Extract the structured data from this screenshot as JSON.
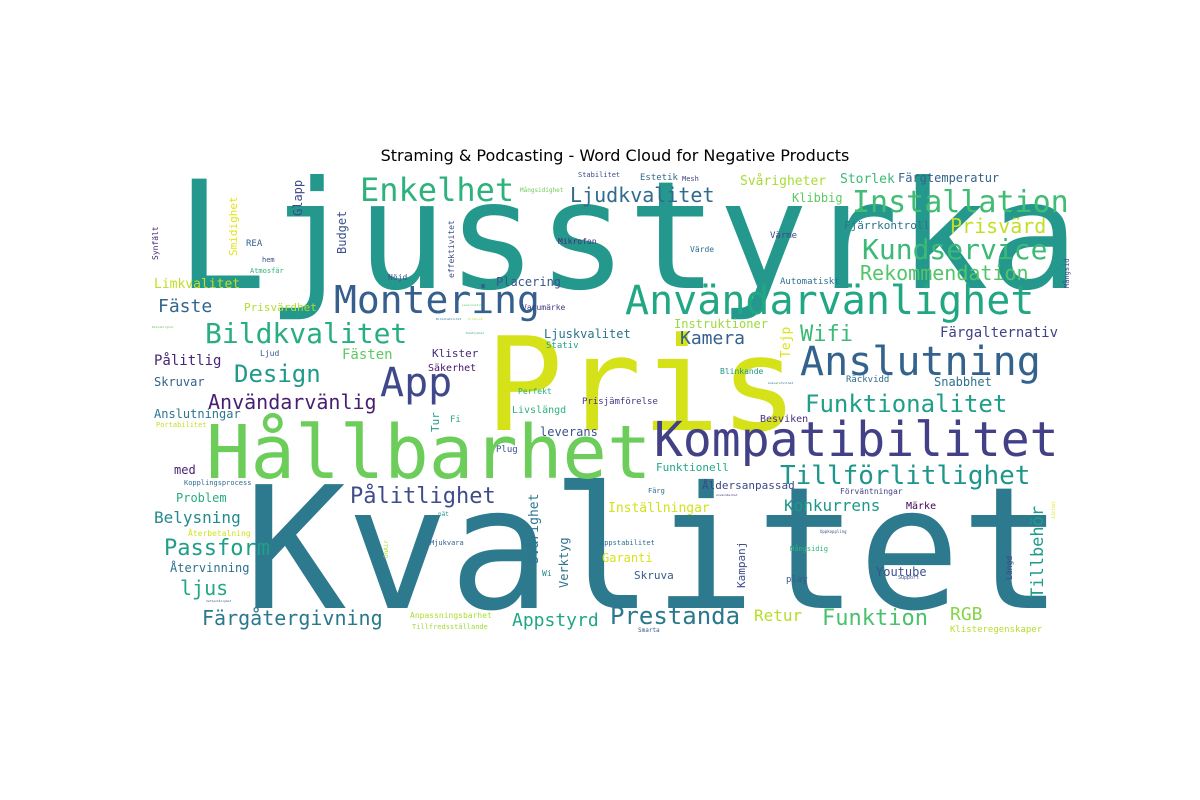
{
  "title": "Straming & Podcasting - Word Cloud for Negative Products",
  "words": [
    {
      "text": "Ljusstyrka",
      "color": "#25988d"
    },
    {
      "text": "Kvalitet",
      "color": "#2d798e"
    },
    {
      "text": "Pris",
      "color": "#d5e21a"
    },
    {
      "text": "Hållbarhet",
      "color": "#6ccd5a"
    },
    {
      "text": "Kompatibilitet",
      "color": "#424086"
    },
    {
      "text": "Användarvänlighet",
      "color": "#22a785"
    },
    {
      "text": "Montering",
      "color": "#355f8d"
    },
    {
      "text": "Anslutning",
      "color": "#33638d"
    },
    {
      "text": "App",
      "color": "#3f4889"
    },
    {
      "text": "Enkelhet",
      "color": "#2db27d"
    },
    {
      "text": "Installation",
      "color": "#40bd72"
    },
    {
      "text": "Kundservice",
      "color": "#3aba76"
    },
    {
      "text": "Bildkvalitet",
      "color": "#28ae80"
    },
    {
      "text": "Tillförlitlighet",
      "color": "#1f968b"
    },
    {
      "text": "Funktionalitet",
      "color": "#1f9f88"
    },
    {
      "text": "Pålitlighet",
      "color": "#3e4c8a"
    },
    {
      "text": "Design",
      "color": "#1f9a8a"
    },
    {
      "text": "Prestanda",
      "color": "#2a788e"
    },
    {
      "text": "Användarvänlig",
      "color": "#481f70"
    },
    {
      "text": "Rekommendation",
      "color": "#52c569"
    },
    {
      "text": "Ljudkvalitet",
      "color": "#306a8e"
    },
    {
      "text": "Prisvärd",
      "color": "#c2df23"
    },
    {
      "text": "Funktion",
      "color": "#4ac16d"
    },
    {
      "text": "Färgåtergivning",
      "color": "#2a788e"
    },
    {
      "text": "Appstyrd",
      "color": "#21a685"
    },
    {
      "text": "Kamera",
      "color": "#34618d"
    },
    {
      "text": "Wifi",
      "color": "#3bbb75"
    },
    {
      "text": "Passform",
      "color": "#1f9e89"
    },
    {
      "text": "RGB",
      "color": "#86d549"
    },
    {
      "text": "Fäste",
      "color": "#31668e"
    },
    {
      "text": "Tillbehör",
      "color": "#1e9b8a"
    },
    {
      "text": "Konkurrens",
      "color": "#1f978b"
    },
    {
      "text": "ljus",
      "color": "#22a884"
    },
    {
      "text": "Retur",
      "color": "#b5de2b"
    },
    {
      "text": "Belysning",
      "color": "#23898e"
    },
    {
      "text": "Färgalternativ",
      "color": "#424186"
    },
    {
      "text": "Fästen",
      "color": "#5ec962"
    },
    {
      "text": "Storlek",
      "color": "#3aba76"
    },
    {
      "text": "Svårigheter",
      "color": "#a8db34"
    },
    {
      "text": "Färgtemperatur",
      "color": "#33638d"
    },
    {
      "text": "Instruktioner",
      "color": "#9bd93c"
    },
    {
      "text": "Pålitlig",
      "color": "#482576"
    },
    {
      "text": "Klibbig",
      "color": "#5ec962"
    },
    {
      "text": "Fjärrkontroll",
      "color": "#2c738e"
    },
    {
      "text": "Tejp",
      "color": "#dde318"
    },
    {
      "text": "Limkvalitet",
      "color": "#bddf26"
    },
    {
      "text": "Placering",
      "color": "#39568c"
    },
    {
      "text": "Ljuskvalitet",
      "color": "#2c728e"
    },
    {
      "text": "Snabbhet",
      "color": "#2c718e"
    },
    {
      "text": "Skruvar",
      "color": "#355f8d"
    },
    {
      "text": "Anslutningar",
      "color": "#2b758e"
    },
    {
      "text": "leverans",
      "color": "#3b528b"
    },
    {
      "text": "Inställningar",
      "color": "#d2e21b"
    },
    {
      "text": "Funktionell",
      "color": "#22a884"
    },
    {
      "text": "Garanti",
      "color": "#d8e219"
    },
    {
      "text": "Problem",
      "color": "#27ad81"
    },
    {
      "text": "Återvinning",
      "color": "#2d718e"
    },
    {
      "text": "Youtube",
      "color": "#3b528b"
    },
    {
      "text": "Verktyg",
      "color": "#2c738e"
    },
    {
      "text": "Svårighet",
      "color": "#2a778e"
    },
    {
      "text": "Smidighet",
      "color": "#e2e418"
    },
    {
      "text": "Budget",
      "color": "#3b528b"
    },
    {
      "text": "Glapp",
      "color": "#3e4989"
    },
    {
      "text": "Klister",
      "color": "#482878"
    },
    {
      "text": "Besviken",
      "color": "#46307e"
    },
    {
      "text": "Räckvidd",
      "color": "#2e6e8e"
    },
    {
      "text": "Kampanj",
      "color": "#3d4d8a"
    },
    {
      "text": "Åldersanpassad",
      "color": "#3f4788"
    },
    {
      "text": "Skruva",
      "color": "#375a8c"
    },
    {
      "text": "Märke",
      "color": "#440154"
    },
    {
      "text": "Prisvärdhet",
      "color": "#b2dd2d"
    },
    {
      "text": "Säkerhet",
      "color": "#471365"
    },
    {
      "text": "Livslängd",
      "color": "#2db27d"
    },
    {
      "text": "Prisjämförelse",
      "color": "#46337f"
    },
    {
      "text": "Tur",
      "color": "#1f9f88"
    },
    {
      "text": "Fi",
      "color": "#28ae80"
    },
    {
      "text": "Plug",
      "color": "#3b528b"
    },
    {
      "text": "Stativ",
      "color": "#20a386"
    },
    {
      "text": "Perfekt",
      "color": "#29af7f"
    },
    {
      "text": "Blinkande",
      "color": "#1f958b"
    },
    {
      "text": "Automatiskt",
      "color": "#2d718e"
    },
    {
      "text": "Värme",
      "color": "#3e4a89"
    },
    {
      "text": "Värde",
      "color": "#2e6e8e"
    },
    {
      "text": "Mikrofon",
      "color": "#472a7a"
    },
    {
      "text": "Varumärke",
      "color": "#443a83"
    },
    {
      "text": "Estetik",
      "color": "#31678e"
    },
    {
      "text": "Mesh",
      "color": "#3f4788"
    },
    {
      "text": "Stabilitet",
      "color": "#3e4989"
    },
    {
      "text": "Mångsidighet",
      "color": "#6ece58"
    },
    {
      "text": "effektivitet",
      "color": "#3e4c8a"
    },
    {
      "text": "Mångsid",
      "color": "#3e4c8a"
    },
    {
      "text": "Mångsidig",
      "color": "#2eb37c"
    },
    {
      "text": "Synfält",
      "color": "#482475"
    },
    {
      "text": "REA",
      "color": "#34618d"
    },
    {
      "text": "hem",
      "color": "#3b518b"
    },
    {
      "text": "Atmosfär",
      "color": "#2db27d"
    },
    {
      "text": "Ljud",
      "color": "#38598c"
    },
    {
      "text": "Nöjd",
      "color": "#3b528b"
    },
    {
      "text": "med",
      "color": "#481f70"
    },
    {
      "text": "Kopplingsprocess",
      "color": "#2f6b8e"
    },
    {
      "text": "Återbetalning",
      "color": "#d2e21b"
    },
    {
      "text": "Portabilitet",
      "color": "#c2df23"
    },
    {
      "text": "Appstabilitet",
      "color": "#2e6f8e"
    },
    {
      "text": "Mjukvara",
      "color": "#34618d"
    },
    {
      "text": "OnAir",
      "color": "#addc30"
    },
    {
      "text": "Wi",
      "color": "#26828e"
    },
    {
      "text": "Anpassningsbarhet",
      "color": "#addc30"
    },
    {
      "text": "Tillfredsställande",
      "color": "#a0da39"
    },
    {
      "text": "Smarta",
      "color": "#34618d"
    },
    {
      "text": "Färg",
      "color": "#2d708e"
    },
    {
      "text": "nät",
      "color": "#1f948c"
    },
    {
      "text": "play",
      "color": "#375b8d"
    },
    {
      "text": "Längd",
      "color": "#3e4989"
    },
    {
      "text": "Support",
      "color": "#3a548c"
    },
    {
      "text": "Klisteregenskaper",
      "color": "#b5de2b"
    },
    {
      "text": "Förväntningar",
      "color": "#424186"
    },
    {
      "text": "Uppkoppling",
      "color": "#375b8d"
    },
    {
      "text": "Ansvarsfullhet",
      "color": "#2c738e"
    },
    {
      "text": "Användbarhet",
      "color": "#433d84"
    },
    {
      "text": "Vattentålighet",
      "color": "#3a548c"
    },
    {
      "text": "Kundtjänst",
      "color": "#2ab07f"
    },
    {
      "text": "Bekvämlighet",
      "color": "#6ece58"
    },
    {
      "text": "Bildstabilitet",
      "color": "#29798e"
    },
    {
      "text": "Leveranstid",
      "color": "#56c667"
    },
    {
      "text": "Prisnivå",
      "color": "#b8de29"
    },
    {
      "text": "Lätthet",
      "color": "#e2e418"
    }
  ]
}
